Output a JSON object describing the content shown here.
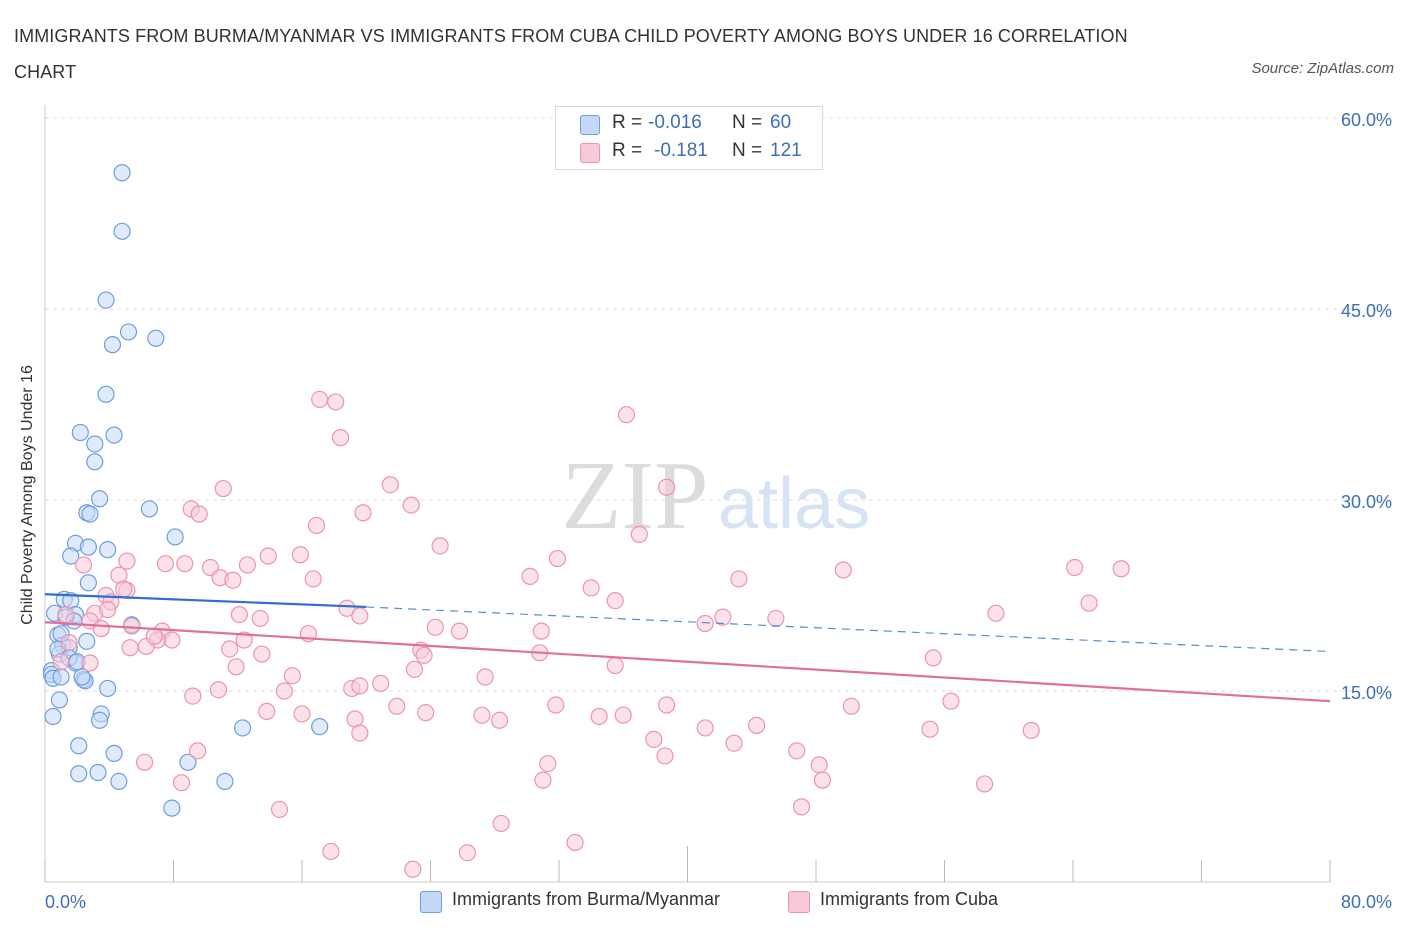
{
  "title": "IMMIGRANTS FROM BURMA/MYANMAR VS IMMIGRANTS FROM CUBA CHILD POVERTY AMONG BOYS UNDER 16 CORRELATION CHART",
  "source": "Source: ZipAtlas.com",
  "watermark": {
    "zip": "ZIP",
    "atlas": "atlas"
  },
  "legend": {
    "burma": {
      "r_label": "R =",
      "r_value": "-0.016",
      "n_label": "N =",
      "n_value": "60"
    },
    "cuba": {
      "r_label": "R =",
      "r_value": "-0.181",
      "n_label": "N =",
      "n_value": "121"
    }
  },
  "colors": {
    "burma_fill": "#c5d9f7",
    "burma_stroke": "#6c9ee0",
    "burma_line": "#2e6fd1",
    "cuba_fill": "#f8cad8",
    "cuba_stroke": "#eb94b2",
    "cuba_line": "#e0709a",
    "axis_label": "#3d6fb8",
    "grid": "#dddddd"
  },
  "chart_data": {
    "type": "scatter",
    "title": "IMMIGRANTS FROM BURMA/MYANMAR VS IMMIGRANTS FROM CUBA CHILD POVERTY AMONG BOYS UNDER 16 CORRELATION CHART",
    "xlabel": "",
    "ylabel": "Child Poverty Among Boys Under 16",
    "xlim": [
      0,
      80
    ],
    "ylim": [
      0,
      60
    ],
    "x_tick_labels": [
      "0.0%",
      "80.0%"
    ],
    "y_ticks": [
      15,
      30,
      45,
      60
    ],
    "y_tick_labels": [
      "15.0%",
      "30.0%",
      "45.0%",
      "60.0%"
    ],
    "grid": true,
    "series": [
      {
        "name": "Immigrants from Burma/Myanmar",
        "r": -0.016,
        "n": 60,
        "trend": {
          "x": [
            0,
            20
          ],
          "y": [
            22.6,
            21.6
          ],
          "dashed_to_x": 80,
          "dashed_to_y": 18.1
        },
        "points": [
          [
            4.8,
            55.7
          ],
          [
            4.8,
            51.1
          ],
          [
            3.8,
            45.7
          ],
          [
            5.2,
            43.2
          ],
          [
            4.2,
            42.2
          ],
          [
            6.9,
            42.7
          ],
          [
            3.8,
            38.3
          ],
          [
            2.2,
            35.3
          ],
          [
            4.3,
            35.1
          ],
          [
            3.1,
            34.4
          ],
          [
            3.1,
            33.0
          ],
          [
            3.4,
            30.1
          ],
          [
            6.5,
            29.3
          ],
          [
            2.6,
            29.0
          ],
          [
            2.8,
            28.9
          ],
          [
            8.1,
            27.1
          ],
          [
            1.9,
            26.6
          ],
          [
            2.7,
            26.3
          ],
          [
            3.9,
            26.1
          ],
          [
            1.6,
            25.6
          ],
          [
            2.7,
            23.5
          ],
          [
            1.2,
            22.2
          ],
          [
            1.6,
            22.1
          ],
          [
            1.9,
            21.0
          ],
          [
            0.6,
            21.1
          ],
          [
            1.3,
            20.8
          ],
          [
            1.8,
            20.5
          ],
          [
            5.4,
            20.2
          ],
          [
            0.8,
            19.4
          ],
          [
            1.1,
            18.6
          ],
          [
            1.5,
            18.4
          ],
          [
            2.6,
            18.9
          ],
          [
            0.9,
            17.9
          ],
          [
            1.9,
            17.2
          ],
          [
            0.4,
            16.6
          ],
          [
            0.4,
            16.3
          ],
          [
            0.5,
            16.0
          ],
          [
            1.0,
            16.1
          ],
          [
            2.4,
            15.9
          ],
          [
            2.5,
            15.8
          ],
          [
            3.9,
            15.2
          ],
          [
            0.9,
            14.3
          ],
          [
            3.5,
            13.2
          ],
          [
            0.5,
            13.0
          ],
          [
            3.4,
            12.7
          ],
          [
            12.3,
            12.1
          ],
          [
            17.1,
            12.2
          ],
          [
            2.1,
            10.7
          ],
          [
            4.3,
            10.1
          ],
          [
            8.9,
            9.4
          ],
          [
            2.1,
            8.5
          ],
          [
            3.3,
            8.6
          ],
          [
            4.6,
            7.9
          ],
          [
            11.2,
            7.9
          ],
          [
            7.9,
            5.8
          ],
          [
            0.8,
            18.3
          ],
          [
            1.5,
            17.6
          ],
          [
            2.3,
            16.1
          ],
          [
            1.0,
            19.5
          ],
          [
            2.0,
            17.3
          ]
        ]
      },
      {
        "name": "Immigrants from Cuba",
        "r": -0.181,
        "n": 121,
        "trend": {
          "x": [
            0,
            80
          ],
          "y": [
            20.4,
            14.2
          ]
        },
        "points": [
          [
            36.2,
            36.7
          ],
          [
            17.1,
            37.9
          ],
          [
            18.1,
            37.7
          ],
          [
            18.4,
            34.9
          ],
          [
            21.5,
            31.2
          ],
          [
            38.7,
            31.0
          ],
          [
            11.1,
            30.9
          ],
          [
            9.1,
            29.3
          ],
          [
            9.6,
            28.9
          ],
          [
            22.8,
            29.6
          ],
          [
            16.9,
            28.0
          ],
          [
            19.8,
            29.0
          ],
          [
            37.0,
            27.3
          ],
          [
            24.6,
            26.4
          ],
          [
            13.9,
            25.6
          ],
          [
            15.9,
            25.7
          ],
          [
            31.9,
            25.4
          ],
          [
            5.1,
            25.2
          ],
          [
            7.5,
            25.0
          ],
          [
            8.7,
            25.0
          ],
          [
            12.6,
            24.9
          ],
          [
            10.3,
            24.7
          ],
          [
            2.4,
            24.9
          ],
          [
            30.2,
            24.0
          ],
          [
            4.6,
            24.1
          ],
          [
            10.9,
            23.9
          ],
          [
            11.7,
            23.7
          ],
          [
            16.7,
            23.8
          ],
          [
            43.2,
            23.8
          ],
          [
            34.0,
            23.1
          ],
          [
            5.1,
            22.9
          ],
          [
            3.8,
            22.5
          ],
          [
            4.1,
            22.0
          ],
          [
            64.1,
            24.7
          ],
          [
            67.0,
            24.6
          ],
          [
            49.7,
            24.5
          ],
          [
            35.5,
            22.1
          ],
          [
            65.0,
            21.9
          ],
          [
            18.8,
            21.5
          ],
          [
            3.1,
            21.1
          ],
          [
            3.9,
            21.4
          ],
          [
            1.3,
            21.0
          ],
          [
            12.1,
            21.0
          ],
          [
            19.6,
            20.9
          ],
          [
            59.2,
            21.1
          ],
          [
            42.2,
            20.8
          ],
          [
            45.5,
            20.7
          ],
          [
            13.4,
            20.7
          ],
          [
            2.8,
            20.5
          ],
          [
            41.1,
            20.3
          ],
          [
            24.3,
            20.0
          ],
          [
            25.8,
            19.7
          ],
          [
            30.9,
            19.7
          ],
          [
            7.3,
            19.7
          ],
          [
            16.4,
            19.5
          ],
          [
            5.4,
            20.1
          ],
          [
            3.5,
            19.9
          ],
          [
            7.9,
            19.0
          ],
          [
            12.4,
            19.0
          ],
          [
            7.0,
            19.0
          ],
          [
            6.3,
            18.5
          ],
          [
            5.3,
            18.4
          ],
          [
            11.5,
            18.3
          ],
          [
            23.4,
            18.2
          ],
          [
            30.8,
            18.0
          ],
          [
            23.6,
            17.8
          ],
          [
            13.5,
            17.9
          ],
          [
            55.3,
            17.6
          ],
          [
            1.0,
            17.3
          ],
          [
            2.8,
            17.2
          ],
          [
            35.5,
            17.0
          ],
          [
            11.9,
            16.9
          ],
          [
            23.0,
            16.7
          ],
          [
            15.4,
            16.2
          ],
          [
            27.4,
            16.1
          ],
          [
            19.1,
            15.2
          ],
          [
            20.9,
            15.6
          ],
          [
            19.6,
            15.4
          ],
          [
            14.9,
            15.0
          ],
          [
            10.8,
            15.1
          ],
          [
            9.2,
            14.6
          ],
          [
            21.9,
            13.8
          ],
          [
            38.7,
            13.9
          ],
          [
            31.8,
            13.9
          ],
          [
            56.4,
            14.2
          ],
          [
            50.2,
            13.8
          ],
          [
            36.0,
            13.1
          ],
          [
            13.8,
            13.4
          ],
          [
            16.0,
            13.2
          ],
          [
            23.7,
            13.3
          ],
          [
            34.5,
            13.0
          ],
          [
            27.2,
            13.1
          ],
          [
            28.3,
            12.7
          ],
          [
            19.3,
            12.8
          ],
          [
            44.3,
            12.3
          ],
          [
            41.1,
            12.1
          ],
          [
            55.1,
            12.0
          ],
          [
            61.4,
            11.9
          ],
          [
            19.6,
            11.7
          ],
          [
            37.9,
            11.2
          ],
          [
            42.9,
            10.9
          ],
          [
            46.8,
            10.3
          ],
          [
            38.6,
            9.9
          ],
          [
            6.2,
            9.4
          ],
          [
            31.3,
            9.3
          ],
          [
            48.2,
            9.2
          ],
          [
            31.0,
            8.0
          ],
          [
            48.4,
            8.0
          ],
          [
            58.5,
            7.7
          ],
          [
            8.5,
            7.8
          ],
          [
            47.1,
            5.9
          ],
          [
            14.6,
            5.7
          ],
          [
            28.4,
            4.6
          ],
          [
            33.0,
            3.1
          ],
          [
            17.8,
            2.4
          ],
          [
            26.3,
            2.3
          ],
          [
            22.9,
            1.0
          ],
          [
            9.5,
            10.3
          ],
          [
            6.8,
            19.3
          ],
          [
            1.5,
            18.8
          ],
          [
            4.9,
            23.0
          ]
        ]
      }
    ]
  },
  "bottom_legend": {
    "burma_label": "Immigrants from Burma/Myanmar",
    "cuba_label": "Immigrants from Cuba"
  }
}
